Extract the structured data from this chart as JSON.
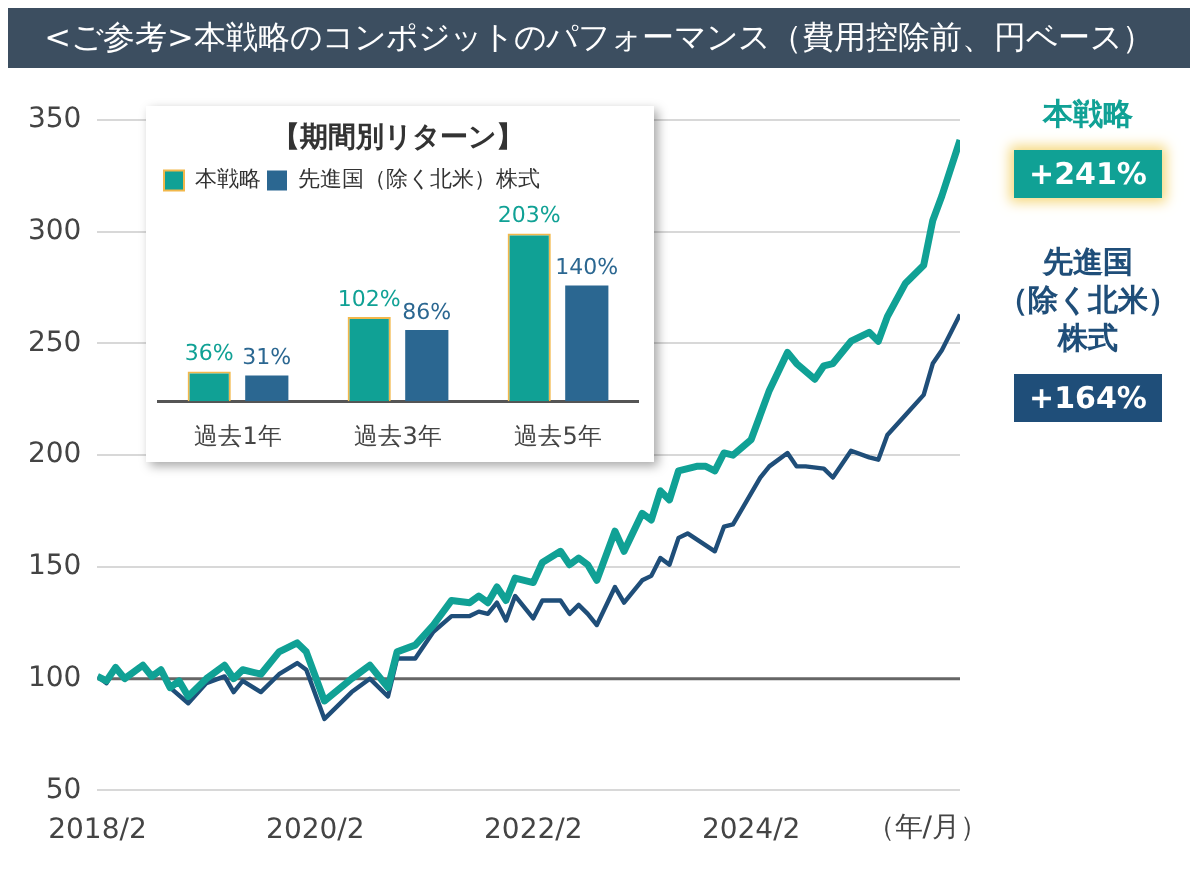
{
  "chart_data": [
    {
      "type": "line",
      "title": "<ご参考>本戦略のコンポジットのパフォーマンス（費用控除前、円ベース）",
      "xlabel": "（年/月）",
      "xlim": [
        "2018-02",
        "2026-01"
      ],
      "xticks": [
        {
          "value": "2018-02",
          "label": "2018/2"
        },
        {
          "value": "2020-02",
          "label": "2020/2"
        },
        {
          "value": "2022-02",
          "label": "2022/2"
        },
        {
          "value": "2024-02",
          "label": "2024/2"
        }
      ],
      "ylim": [
        50,
        350
      ],
      "yticks": [
        50,
        100,
        150,
        200,
        250,
        300,
        350
      ],
      "grid": "y",
      "ref_lines": [
        {
          "axis": "y",
          "value": 100,
          "color": "#666666"
        }
      ],
      "series": [
        {
          "name": "本戦略",
          "color": "#10a195",
          "x": [
            "2018-02",
            "2018-03",
            "2018-04",
            "2018-05",
            "2018-07",
            "2018-08",
            "2018-09",
            "2018-10",
            "2018-11",
            "2018-12",
            "2019-02",
            "2019-04",
            "2019-05",
            "2019-06",
            "2019-08",
            "2019-10",
            "2019-12",
            "2020-01",
            "2020-03",
            "2020-06",
            "2020-08",
            "2020-10",
            "2020-11",
            "2021-01",
            "2021-03",
            "2021-05",
            "2021-07",
            "2021-08",
            "2021-09",
            "2021-10",
            "2021-11",
            "2021-12",
            "2022-02",
            "2022-03",
            "2022-05",
            "2022-06",
            "2022-07",
            "2022-08",
            "2022-09",
            "2022-11",
            "2022-12",
            "2023-02",
            "2023-03",
            "2023-04",
            "2023-05",
            "2023-06",
            "2023-08",
            "2023-09",
            "2023-10",
            "2023-11",
            "2023-12",
            "2024-02",
            "2024-04",
            "2024-06",
            "2024-07",
            "2024-09",
            "2024-10",
            "2024-11",
            "2025-01",
            "2025-03",
            "2025-04",
            "2025-05",
            "2025-07",
            "2025-09",
            "2025-10",
            "2025-11",
            "2026-01"
          ],
          "values": [
            101,
            99,
            105,
            100,
            106,
            101,
            104,
            96,
            99,
            92,
            100,
            106,
            100,
            104,
            102,
            112,
            116,
            112,
            90,
            100,
            106,
            96,
            112,
            115,
            124,
            135,
            134,
            137,
            134,
            141,
            135,
            145,
            143,
            152,
            157,
            151,
            154,
            151,
            144,
            166,
            157,
            174,
            171,
            184,
            180,
            193,
            195,
            195,
            193,
            201,
            200,
            207,
            229,
            246,
            241,
            234,
            240,
            241,
            251,
            255,
            251,
            262,
            277,
            285,
            305,
            316,
            341
          ]
        },
        {
          "name": "先進国（除く北米）株式",
          "color": "#1f4e79",
          "x": [
            "2018-02",
            "2018-03",
            "2018-04",
            "2018-05",
            "2018-07",
            "2018-08",
            "2018-09",
            "2018-10",
            "2018-12",
            "2019-02",
            "2019-04",
            "2019-05",
            "2019-06",
            "2019-08",
            "2019-10",
            "2019-12",
            "2020-01",
            "2020-03",
            "2020-06",
            "2020-08",
            "2020-10",
            "2020-11",
            "2021-01",
            "2021-03",
            "2021-05",
            "2021-07",
            "2021-08",
            "2021-09",
            "2021-10",
            "2021-11",
            "2021-12",
            "2022-02",
            "2022-03",
            "2022-05",
            "2022-06",
            "2022-07",
            "2022-08",
            "2022-09",
            "2022-11",
            "2022-12",
            "2023-02",
            "2023-03",
            "2023-04",
            "2023-05",
            "2023-06",
            "2023-07",
            "2023-10",
            "2023-11",
            "2023-12",
            "2024-03",
            "2024-04",
            "2024-06",
            "2024-07",
            "2024-08",
            "2024-10",
            "2024-11",
            "2025-01",
            "2025-03",
            "2025-04",
            "2025-05",
            "2025-07",
            "2025-09",
            "2025-10",
            "2025-11",
            "2026-01"
          ],
          "values": [
            101,
            98,
            105,
            100,
            106,
            101,
            103,
            96,
            89,
            98,
            101,
            94,
            99,
            94,
            102,
            107,
            104,
            82,
            94,
            100,
            92,
            109,
            109,
            121,
            128,
            128,
            130,
            129,
            134,
            126,
            137,
            127,
            135,
            135,
            129,
            133,
            129,
            124,
            141,
            134,
            144,
            146,
            154,
            151,
            163,
            165,
            157,
            168,
            169,
            190,
            195,
            201,
            195,
            195,
            194,
            190,
            202,
            199,
            198,
            209,
            218,
            227,
            241,
            247,
            263
          ]
        }
      ],
      "annotations": [
        "+241%",
        "+164%"
      ]
    },
    {
      "type": "bar",
      "title": "【期間別リターン】",
      "categories": [
        "過去1年",
        "過去3年",
        "過去5年"
      ],
      "legend": "top left",
      "series": [
        {
          "name": "本戦略",
          "color": "#10a195",
          "values": [
            36,
            102,
            203
          ],
          "value_labels": [
            "36%",
            "102%",
            "203%"
          ]
        },
        {
          "name": "先進国（除く北米）株式",
          "color": "#2b6791",
          "values": [
            31,
            86,
            140
          ],
          "value_labels": [
            "31%",
            "86%",
            "140%"
          ]
        }
      ]
    }
  ]
}
